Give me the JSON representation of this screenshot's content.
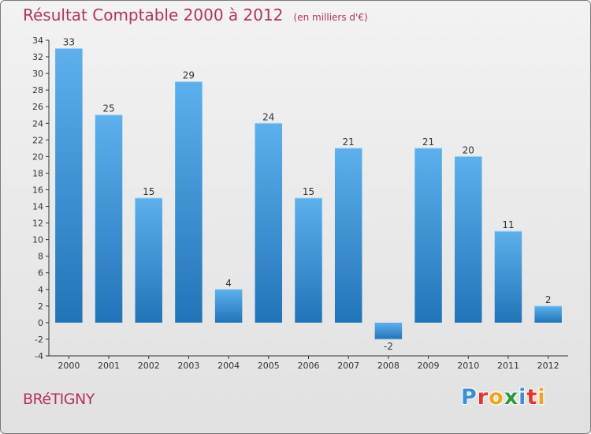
{
  "chart_data": {
    "type": "bar",
    "title": "Résultat Comptable 2000 à 2012",
    "subtitle": "(en milliers d'€)",
    "categories": [
      "2000",
      "2001",
      "2002",
      "2003",
      "2004",
      "2005",
      "2006",
      "2007",
      "2008",
      "2009",
      "2010",
      "2011",
      "2012"
    ],
    "values": [
      33,
      25,
      15,
      29,
      4,
      24,
      15,
      21,
      -2,
      21,
      20,
      11,
      2
    ],
    "ylim": [
      -4,
      34
    ],
    "ytick_step": 2,
    "grid": false,
    "bar_color": "#3f96da",
    "bar_color_dark": "#2274b9"
  },
  "footer": {
    "city": "BRéTIGNY",
    "brand": "Proxiti",
    "brand_colors": [
      "#3b8fd8",
      "#e8352b",
      "#f3a31c",
      "#2f9a3e",
      "#3b8fd8",
      "#e8352b",
      "#f3a31c"
    ]
  },
  "colors": {
    "title": "#b5325a",
    "axis": "#333333"
  }
}
